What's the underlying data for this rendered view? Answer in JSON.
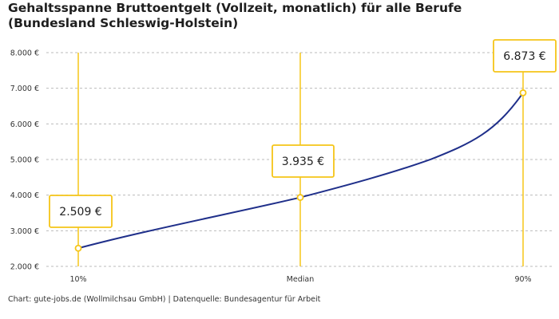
{
  "title": "Gehaltsspanne Bruttoentgelt (Vollzeit, monatlich) für alle Berufe (Bundesland Schleswig-Holstein)",
  "footer": "Chart: gute-jobs.de (Wollmilchsau GmbH) | Datenquelle: Bundesagentur für Arbeit",
  "colors": {
    "line": "#1f2f8a",
    "accent": "#f5c518",
    "grid": "#bbbbbb"
  },
  "chart_data": {
    "type": "line",
    "categories": [
      "10%",
      "Median",
      "90%"
    ],
    "values": [
      2509,
      3935,
      6873
    ],
    "value_labels": [
      "2.509 €",
      "3.935 €",
      "6.873 €"
    ],
    "y_ticks": [
      2000,
      3000,
      4000,
      5000,
      6000,
      7000,
      8000
    ],
    "y_tick_labels": [
      "2.000 €",
      "3.000 €",
      "4.000 €",
      "5.000 €",
      "6.000 €",
      "7.000 €",
      "8.000 €"
    ],
    "ylim": [
      2000,
      8000
    ],
    "grid": true
  }
}
